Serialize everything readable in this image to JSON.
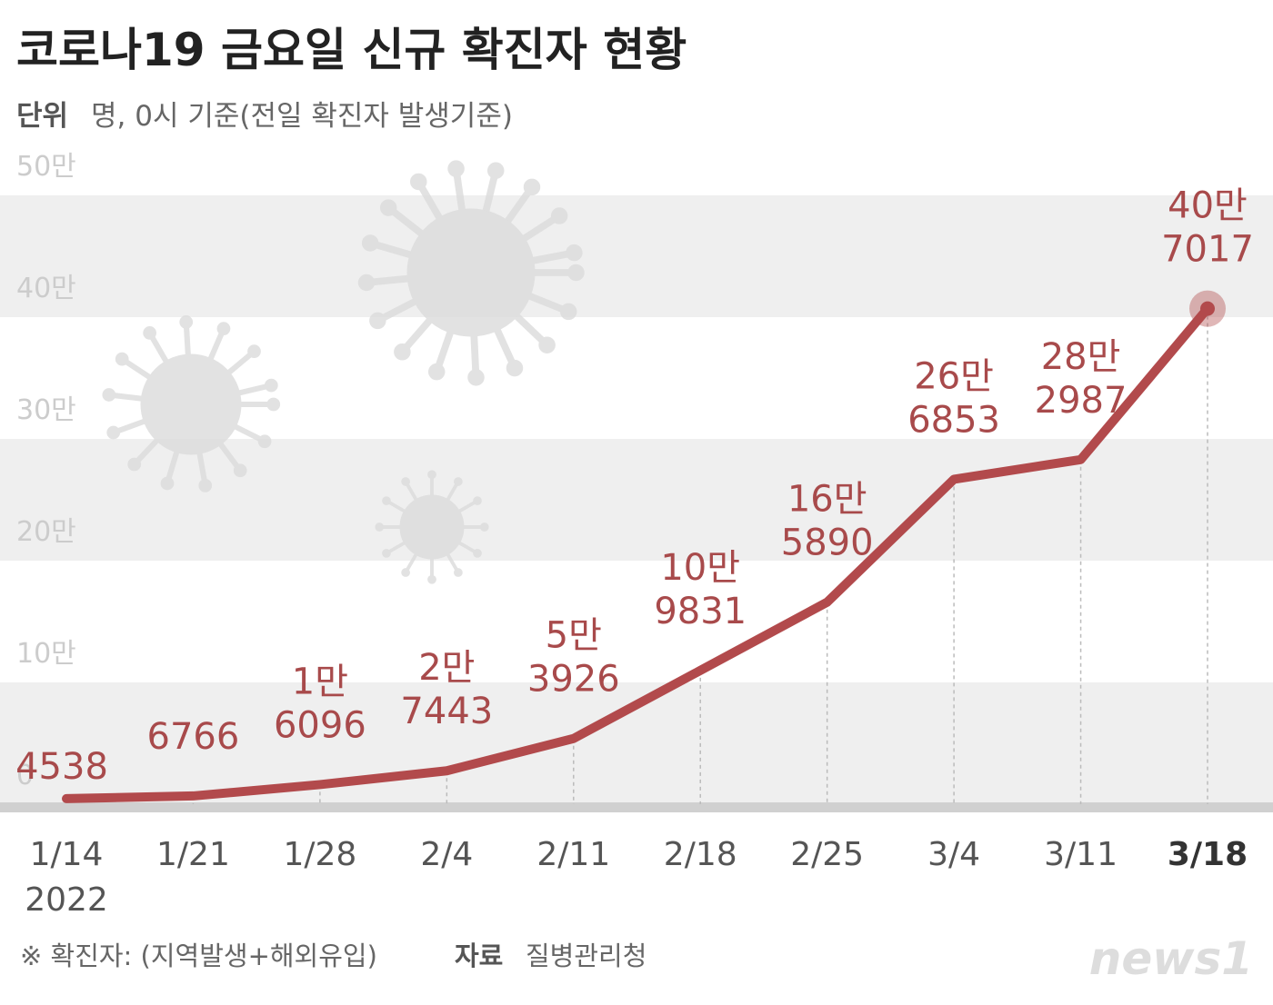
{
  "chart_data": {
    "type": "line",
    "title": "코로나19 금요일 신규 확진자 현황",
    "unit_label": "단위",
    "subtitle": "명, 0시 기준(전일 확진자 발생기준)",
    "categories": [
      "1/14",
      "1/21",
      "1/28",
      "2/4",
      "2/11",
      "2/18",
      "2/25",
      "3/4",
      "3/11",
      "3/18"
    ],
    "x_year": "2022",
    "values": [
      4538,
      6766,
      16096,
      27443,
      53926,
      109831,
      165890,
      266853,
      282987,
      407017
    ],
    "value_labels": [
      "4538",
      "6766",
      "1만\n6096",
      "2만\n7443",
      "5만\n3926",
      "10만\n9831",
      "16만\n5890",
      "26만\n6853",
      "28만\n2987",
      "40만\n7017"
    ],
    "color": "#b24a4c",
    "ylim": [
      0,
      500000
    ],
    "yticks": [
      0,
      {
        "value": 100000,
        "label": "10만"
      },
      {
        "value": 200000,
        "label": "20만"
      },
      {
        "value": 300000,
        "label": "30만"
      },
      {
        "value": 400000,
        "label": "40만"
      },
      {
        "value": 500000,
        "label": "50만"
      }
    ],
    "note": "※ 확진자: (지역발생+해외유입)",
    "source_label": "자료",
    "source": "질병관리청",
    "logo": "news1"
  }
}
